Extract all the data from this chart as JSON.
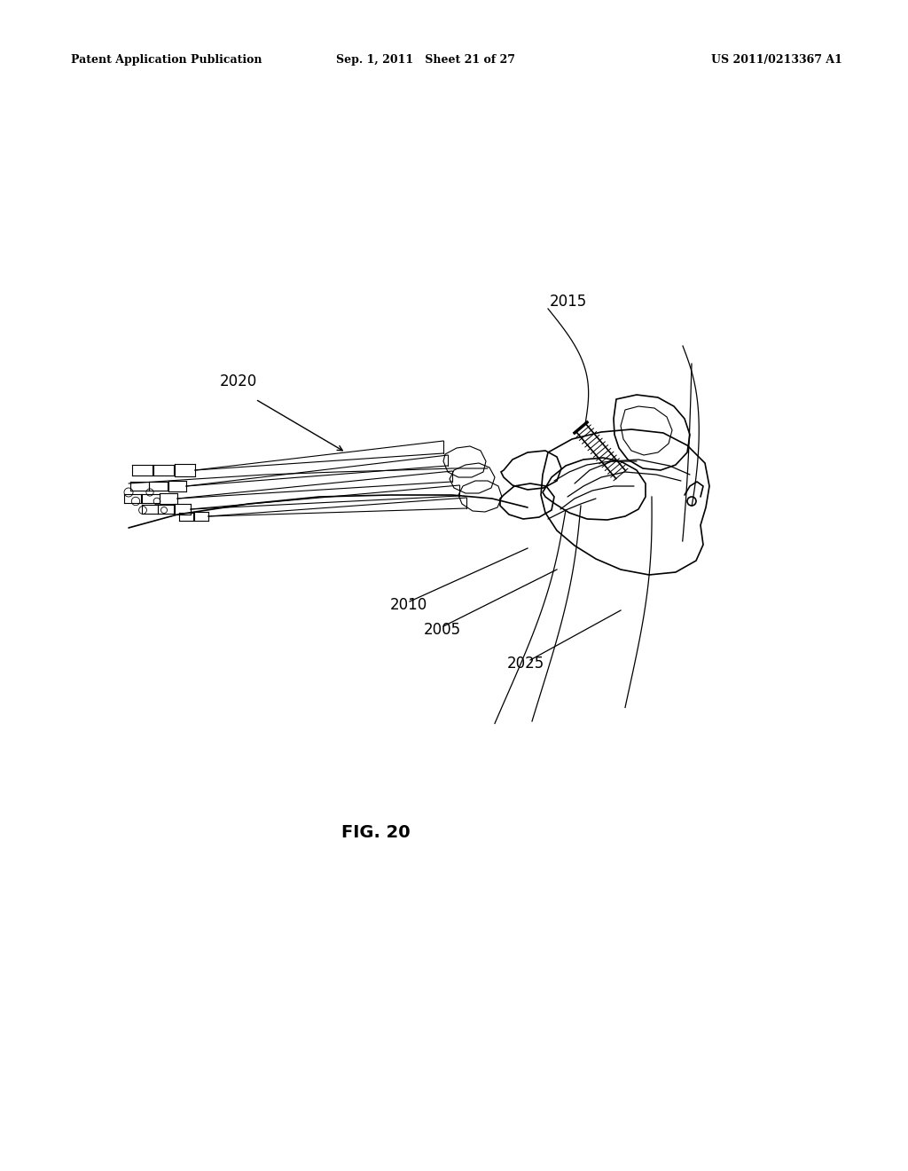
{
  "background_color": "#ffffff",
  "header_left": "Patent Application Publication",
  "header_center": "Sep. 1, 2011   Sheet 21 of 27",
  "header_right": "US 2011/0213367 A1",
  "fig_label": "FIG. 20",
  "label_2015": "2015",
  "label_2020": "2020",
  "label_2010": "2010",
  "label_2005": "2005",
  "label_2025": "2025"
}
